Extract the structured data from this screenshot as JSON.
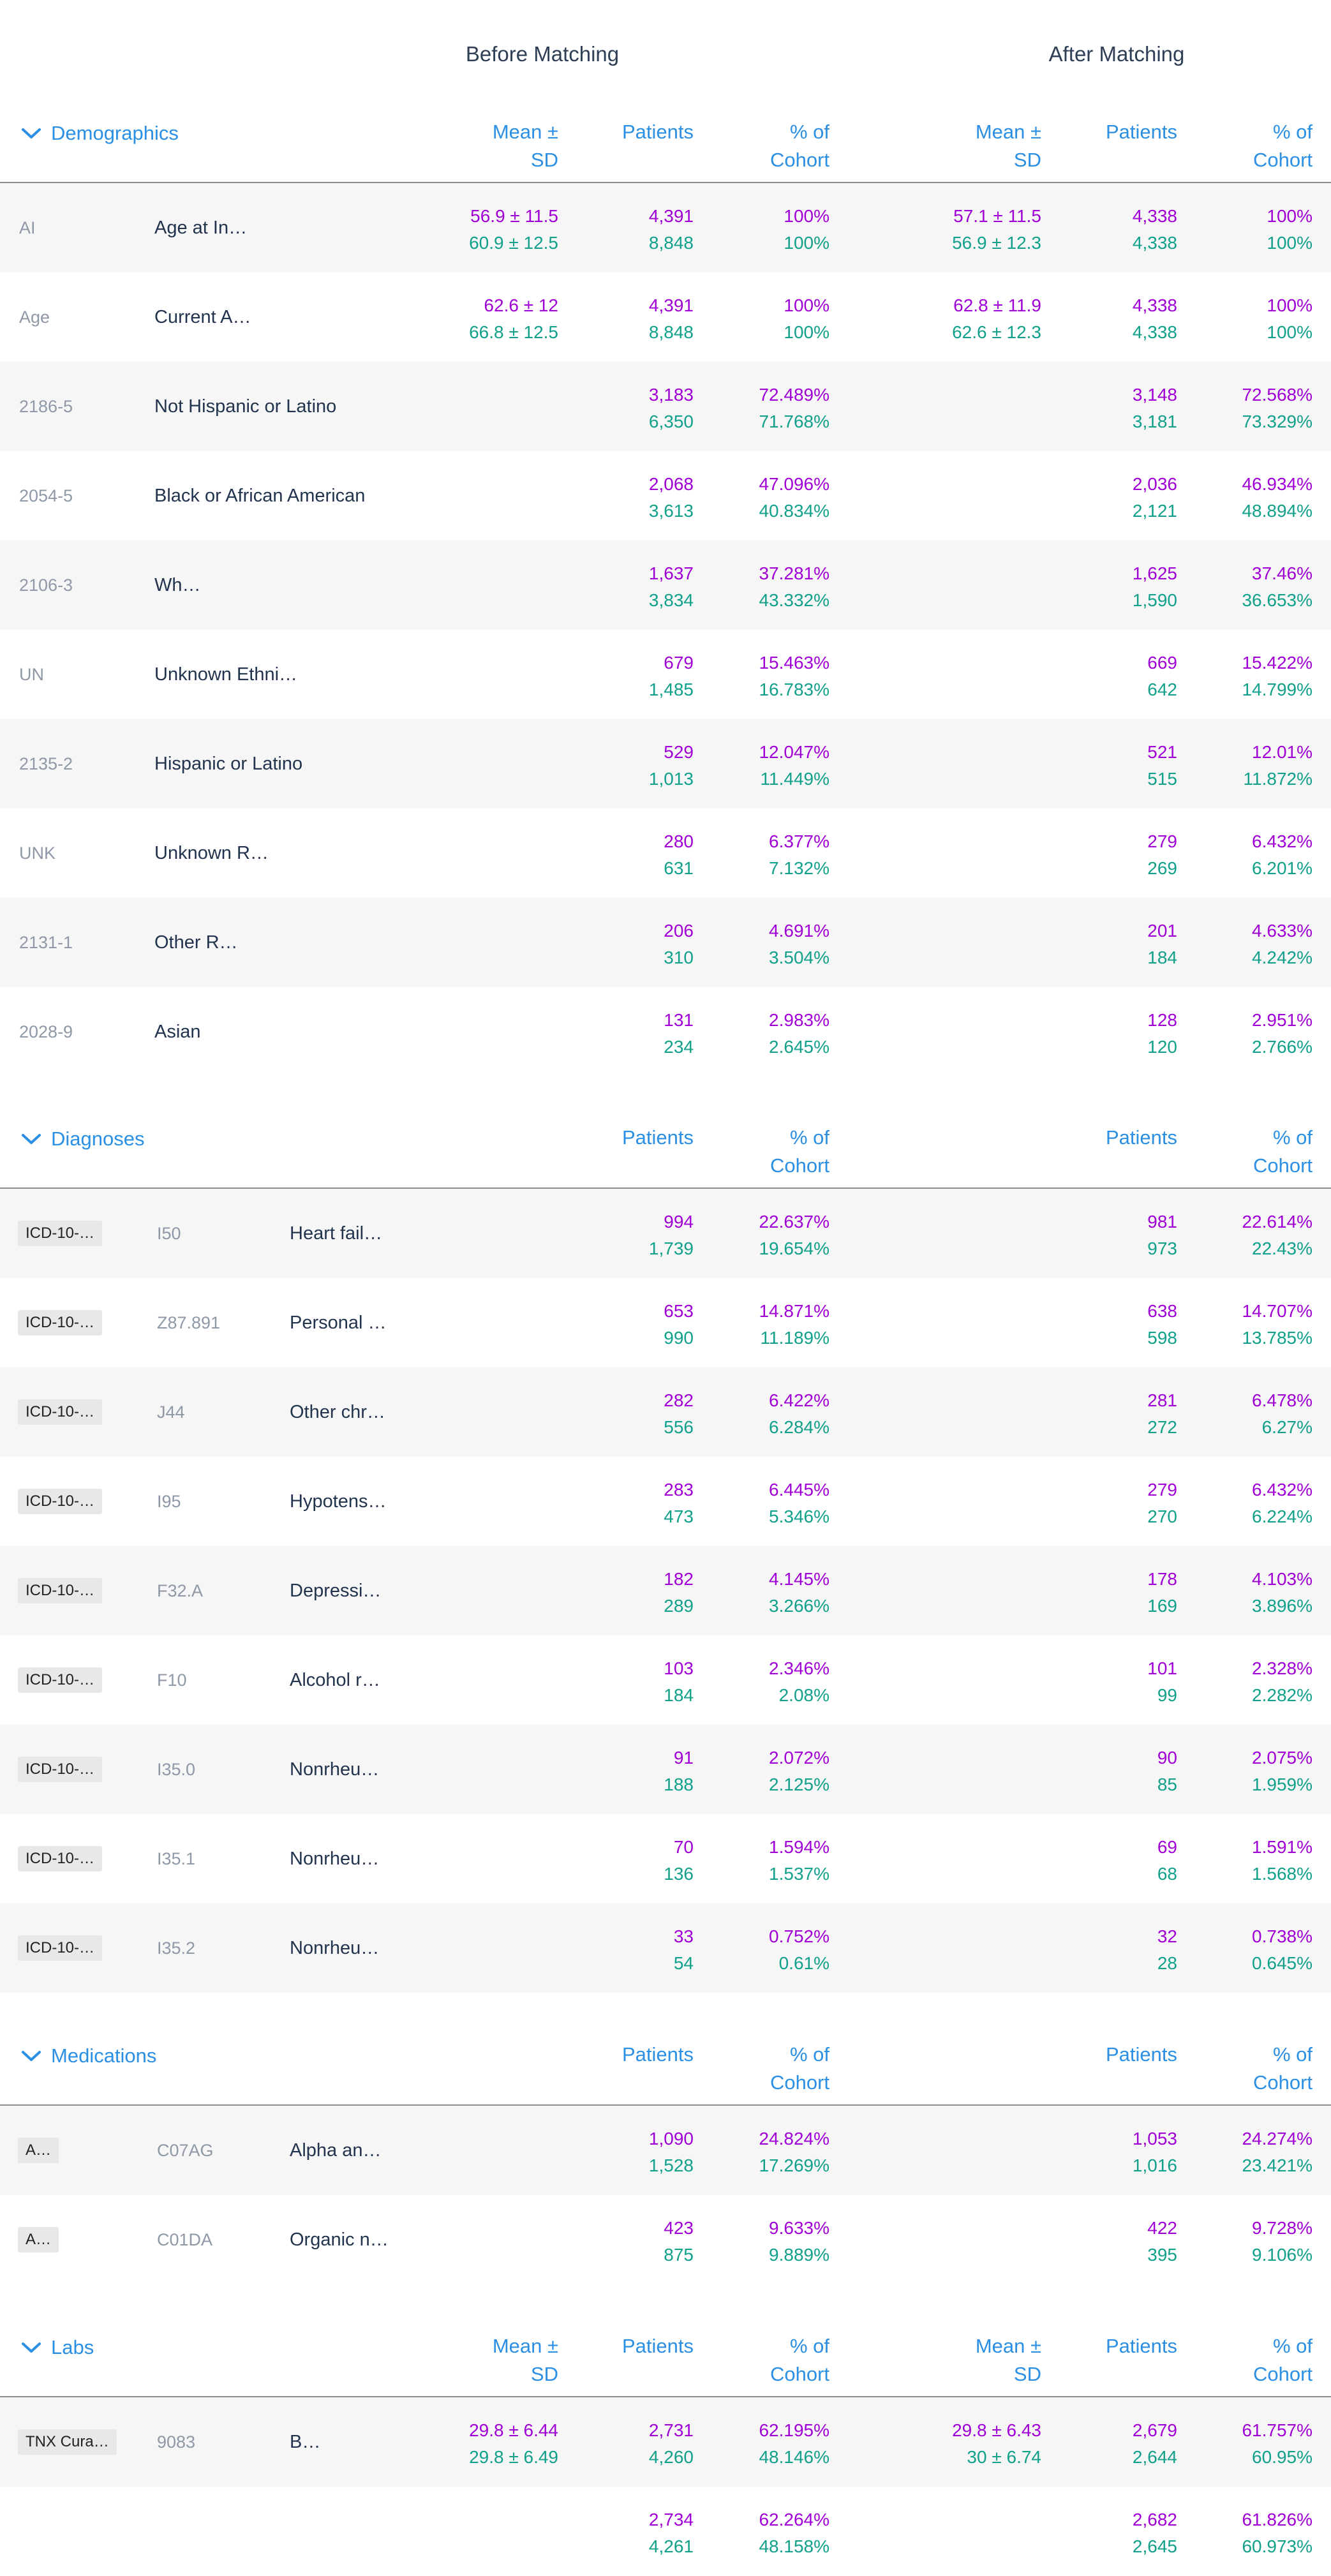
{
  "header": {
    "before_label": "Before Matching",
    "after_label": "After Matching"
  },
  "col_labels": {
    "mean_sd": "Mean ±\nSD",
    "patients": "Patients",
    "pct_cohort": "% of\nCohort"
  },
  "colors": {
    "cohort1": "#a000d6",
    "cohort2": "#11a08a",
    "accent": "#2b8fe3"
  },
  "sections": {
    "demographics": {
      "title": "Demographics",
      "rows": [
        {
          "code": "AI",
          "name": "Age at In…",
          "b_mean1": "56.9 ± 11.5",
          "b_mean2": "60.9 ± 12.5",
          "b_p1": "4,391",
          "b_p2": "8,848",
          "b_c1": "100%",
          "b_c2": "100%",
          "a_mean1": "57.1 ± 11.5",
          "a_mean2": "56.9 ± 12.3",
          "a_p1": "4,338",
          "a_p2": "4,338",
          "a_c1": "100%",
          "a_c2": "100%"
        },
        {
          "code": "Age",
          "name": "Current A…",
          "b_mean1": "62.6 ± 12",
          "b_mean2": "66.8 ± 12.5",
          "b_p1": "4,391",
          "b_p2": "8,848",
          "b_c1": "100%",
          "b_c2": "100%",
          "a_mean1": "62.8 ± 11.9",
          "a_mean2": "62.6 ± 12.3",
          "a_p1": "4,338",
          "a_p2": "4,338",
          "a_c1": "100%",
          "a_c2": "100%"
        },
        {
          "code": "2186-5",
          "name": "Not Hispanic or Latino",
          "b_p1": "3,183",
          "b_p2": "6,350",
          "b_c1": "72.489%",
          "b_c2": "71.768%",
          "a_p1": "3,148",
          "a_p2": "3,181",
          "a_c1": "72.568%",
          "a_c2": "73.329%"
        },
        {
          "code": "2054-5",
          "name": "Black or African American",
          "b_p1": "2,068",
          "b_p2": "3,613",
          "b_c1": "47.096%",
          "b_c2": "40.834%",
          "a_p1": "2,036",
          "a_p2": "2,121",
          "a_c1": "46.934%",
          "a_c2": "48.894%"
        },
        {
          "code": "2106-3",
          "name": "Wh…",
          "b_p1": "1,637",
          "b_p2": "3,834",
          "b_c1": "37.281%",
          "b_c2": "43.332%",
          "a_p1": "1,625",
          "a_p2": "1,590",
          "a_c1": "37.46%",
          "a_c2": "36.653%"
        },
        {
          "code": "UN",
          "name": "Unknown Ethni…",
          "b_p1": "679",
          "b_p2": "1,485",
          "b_c1": "15.463%",
          "b_c2": "16.783%",
          "a_p1": "669",
          "a_p2": "642",
          "a_c1": "15.422%",
          "a_c2": "14.799%"
        },
        {
          "code": "2135-2",
          "name": "Hispanic or Latino",
          "b_p1": "529",
          "b_p2": "1,013",
          "b_c1": "12.047%",
          "b_c2": "11.449%",
          "a_p1": "521",
          "a_p2": "515",
          "a_c1": "12.01%",
          "a_c2": "11.872%"
        },
        {
          "code": "UNK",
          "name": "Unknown R…",
          "b_p1": "280",
          "b_p2": "631",
          "b_c1": "6.377%",
          "b_c2": "7.132%",
          "a_p1": "279",
          "a_p2": "269",
          "a_c1": "6.432%",
          "a_c2": "6.201%"
        },
        {
          "code": "2131-1",
          "name": "Other R…",
          "b_p1": "206",
          "b_p2": "310",
          "b_c1": "4.691%",
          "b_c2": "3.504%",
          "a_p1": "201",
          "a_p2": "184",
          "a_c1": "4.633%",
          "a_c2": "4.242%"
        },
        {
          "code": "2028-9",
          "name": "Asian",
          "b_p1": "131",
          "b_p2": "234",
          "b_c1": "2.983%",
          "b_c2": "2.645%",
          "a_p1": "128",
          "a_p2": "120",
          "a_c1": "2.951%",
          "a_c2": "2.766%"
        }
      ]
    },
    "diagnoses": {
      "title": "Diagnoses",
      "rows": [
        {
          "badge": "ICD-10-…",
          "code": "I50",
          "name": "Heart fail…",
          "b_p1": "994",
          "b_p2": "1,739",
          "b_c1": "22.637%",
          "b_c2": "19.654%",
          "a_p1": "981",
          "a_p2": "973",
          "a_c1": "22.614%",
          "a_c2": "22.43%"
        },
        {
          "badge": "ICD-10-…",
          "code": "Z87.891",
          "name": "Personal …",
          "b_p1": "653",
          "b_p2": "990",
          "b_c1": "14.871%",
          "b_c2": "11.189%",
          "a_p1": "638",
          "a_p2": "598",
          "a_c1": "14.707%",
          "a_c2": "13.785%"
        },
        {
          "badge": "ICD-10-…",
          "code": "J44",
          "name": "Other chr…",
          "b_p1": "282",
          "b_p2": "556",
          "b_c1": "6.422%",
          "b_c2": "6.284%",
          "a_p1": "281",
          "a_p2": "272",
          "a_c1": "6.478%",
          "a_c2": "6.27%"
        },
        {
          "badge": "ICD-10-…",
          "code": "I95",
          "name": "Hypotens…",
          "b_p1": "283",
          "b_p2": "473",
          "b_c1": "6.445%",
          "b_c2": "5.346%",
          "a_p1": "279",
          "a_p2": "270",
          "a_c1": "6.432%",
          "a_c2": "6.224%"
        },
        {
          "badge": "ICD-10-…",
          "code": "F32.A",
          "name": "Depressi…",
          "b_p1": "182",
          "b_p2": "289",
          "b_c1": "4.145%",
          "b_c2": "3.266%",
          "a_p1": "178",
          "a_p2": "169",
          "a_c1": "4.103%",
          "a_c2": "3.896%"
        },
        {
          "badge": "ICD-10-…",
          "code": "F10",
          "name": "Alcohol r…",
          "b_p1": "103",
          "b_p2": "184",
          "b_c1": "2.346%",
          "b_c2": "2.08%",
          "a_p1": "101",
          "a_p2": "99",
          "a_c1": "2.328%",
          "a_c2": "2.282%"
        },
        {
          "badge": "ICD-10-…",
          "code": "I35.0",
          "name": "Nonrheu…",
          "b_p1": "91",
          "b_p2": "188",
          "b_c1": "2.072%",
          "b_c2": "2.125%",
          "a_p1": "90",
          "a_p2": "85",
          "a_c1": "2.075%",
          "a_c2": "1.959%"
        },
        {
          "badge": "ICD-10-…",
          "code": "I35.1",
          "name": "Nonrheu…",
          "b_p1": "70",
          "b_p2": "136",
          "b_c1": "1.594%",
          "b_c2": "1.537%",
          "a_p1": "69",
          "a_p2": "68",
          "a_c1": "1.591%",
          "a_c2": "1.568%"
        },
        {
          "badge": "ICD-10-…",
          "code": "I35.2",
          "name": "Nonrheu…",
          "b_p1": "33",
          "b_p2": "54",
          "b_c1": "0.752%",
          "b_c2": "0.61%",
          "a_p1": "32",
          "a_p2": "28",
          "a_c1": "0.738%",
          "a_c2": "0.645%"
        }
      ]
    },
    "medications": {
      "title": "Medications",
      "rows": [
        {
          "badge": "A…",
          "code": "C07AG",
          "name": "Alpha an…",
          "b_p1": "1,090",
          "b_p2": "1,528",
          "b_c1": "24.824%",
          "b_c2": "17.269%",
          "a_p1": "1,053",
          "a_p2": "1,016",
          "a_c1": "24.274%",
          "a_c2": "23.421%"
        },
        {
          "badge": "A…",
          "code": "C01DA",
          "name": "Organic n…",
          "b_p1": "423",
          "b_p2": "875",
          "b_c1": "9.633%",
          "b_c2": "9.889%",
          "a_p1": "422",
          "a_p2": "395",
          "a_c1": "9.728%",
          "a_c2": "9.106%"
        }
      ]
    },
    "labs": {
      "title": "Labs",
      "rows": [
        {
          "badge": "TNX Cura…",
          "code": "9083",
          "name": "B…",
          "b_mean1": "29.8 ± 6.44",
          "b_mean2": "29.8 ± 6.49",
          "b_p1": "2,731",
          "b_p2": "4,260",
          "b_c1": "62.195%",
          "b_c2": "48.146%",
          "a_mean1": "29.8 ± 6.43",
          "a_mean2": "30 ± 6.74",
          "a_p1": "2,679",
          "a_p2": "2,644",
          "a_c1": "61.757%",
          "a_c2": "60.95%"
        },
        {
          "b_p1": "2,734",
          "b_p2": "4,261",
          "b_c1": "62.264%",
          "b_c2": "48.158%",
          "a_p1": "2,682",
          "a_p2": "2,645",
          "a_c1": "61.826%",
          "a_c2": "60.973%"
        }
      ]
    }
  }
}
